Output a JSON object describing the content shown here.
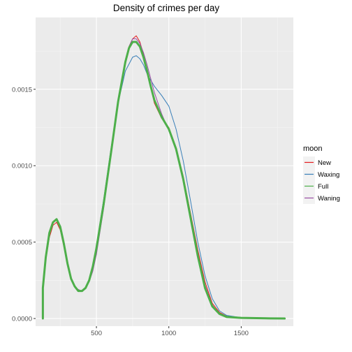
{
  "chart_data": {
    "type": "line",
    "title": "Density of crimes per day",
    "xlabel": "",
    "ylabel": "",
    "xlim": [
      80,
      1860
    ],
    "ylim": [
      -5e-05,
      0.00197
    ],
    "x_ticks": [
      500,
      1000,
      1500
    ],
    "x_tick_labels": [
      "500",
      "1000",
      "1500"
    ],
    "y_ticks": [
      0,
      0.0005,
      0.001,
      0.0015
    ],
    "y_tick_labels": [
      "0.0000",
      "0.0005",
      "0.0010",
      "0.0015"
    ],
    "grid": true,
    "background": "#ebebeb",
    "legend": {
      "title": "moon",
      "position": "right",
      "entries": [
        "New",
        "Waxing",
        "Full",
        "Waning"
      ]
    },
    "series": [
      {
        "name": "New",
        "color": "#e41a1c",
        "width": 1,
        "x": [
          130,
          130,
          150,
          175,
          200,
          225,
          250,
          275,
          300,
          325,
          350,
          375,
          400,
          425,
          450,
          475,
          500,
          550,
          600,
          650,
          700,
          725,
          750,
          775,
          800,
          825,
          850,
          875,
          900,
          950,
          1000,
          1050,
          1100,
          1150,
          1200,
          1250,
          1300,
          1350,
          1400,
          1500,
          1700,
          1800
        ],
        "y": [
          0,
          0.0002,
          0.00038,
          0.00053,
          0.00061,
          0.00063,
          0.00058,
          0.00047,
          0.00035,
          0.00026,
          0.00021,
          0.00018,
          0.00018,
          0.0002,
          0.00025,
          0.00034,
          0.00047,
          0.00076,
          0.00109,
          0.00142,
          0.00168,
          0.00178,
          0.00183,
          0.00185,
          0.00181,
          0.00173,
          0.00162,
          0.00151,
          0.00141,
          0.00131,
          0.00125,
          0.00112,
          0.00093,
          0.00069,
          0.00045,
          0.00024,
          0.0001,
          4e-05,
          1.5e-05,
          5e-06,
          2e-06,
          1e-06
        ]
      },
      {
        "name": "Waxing",
        "color": "#377eb8",
        "width": 1,
        "x": [
          130,
          130,
          150,
          175,
          200,
          225,
          250,
          275,
          300,
          325,
          350,
          375,
          400,
          425,
          450,
          475,
          500,
          550,
          600,
          650,
          700,
          750,
          775,
          800,
          825,
          850,
          875,
          900,
          925,
          950,
          1000,
          1050,
          1100,
          1150,
          1200,
          1250,
          1300,
          1350,
          1400,
          1500,
          1700,
          1800
        ],
        "y": [
          0,
          0.0002,
          0.0004,
          0.00056,
          0.00063,
          0.00065,
          0.0006,
          0.00049,
          0.00036,
          0.00026,
          0.00021,
          0.00018,
          0.00018,
          0.0002,
          0.00026,
          0.00035,
          0.00048,
          0.00078,
          0.00111,
          0.00141,
          0.00162,
          0.00171,
          0.00172,
          0.0017,
          0.00166,
          0.0016,
          0.00156,
          0.00152,
          0.00149,
          0.00146,
          0.00139,
          0.00124,
          0.00103,
          0.00077,
          0.0005,
          0.00028,
          0.00013,
          5e-05,
          2e-05,
          6e-06,
          2e-06,
          1e-06
        ]
      },
      {
        "name": "Waning",
        "color": "#984ea3",
        "width": 1,
        "x": [
          130,
          130,
          150,
          175,
          200,
          225,
          250,
          275,
          300,
          325,
          350,
          375,
          400,
          425,
          450,
          475,
          500,
          550,
          600,
          650,
          700,
          725,
          750,
          775,
          800,
          825,
          850,
          875,
          900,
          950,
          1000,
          1050,
          1100,
          1150,
          1200,
          1250,
          1300,
          1350,
          1400,
          1500,
          1700,
          1800
        ],
        "y": [
          0,
          0.0002,
          0.0004,
          0.00056,
          0.00063,
          0.00065,
          0.0006,
          0.00049,
          0.00036,
          0.00027,
          0.00021,
          0.00019,
          0.00018,
          0.0002,
          0.00024,
          0.00031,
          0.00042,
          0.00072,
          0.00107,
          0.00142,
          0.00168,
          0.00178,
          0.00183,
          0.00183,
          0.0018,
          0.00174,
          0.00166,
          0.00157,
          0.00148,
          0.00134,
          0.00123,
          0.0011,
          0.00091,
          0.00067,
          0.00043,
          0.00022,
          9e-05,
          3e-05,
          1e-05,
          3e-06,
          1e-06,
          0
        ]
      },
      {
        "name": "Full",
        "color": "#4daf4a",
        "width": 3,
        "x": [
          130,
          130,
          150,
          175,
          200,
          225,
          250,
          275,
          300,
          325,
          350,
          375,
          400,
          425,
          450,
          475,
          500,
          550,
          600,
          650,
          700,
          725,
          750,
          775,
          800,
          825,
          850,
          875,
          900,
          950,
          1000,
          1050,
          1100,
          1150,
          1200,
          1250,
          1300,
          1350,
          1400,
          1500,
          1700,
          1800
        ],
        "y": [
          0,
          0.0002,
          0.0004,
          0.00056,
          0.00063,
          0.00065,
          0.0006,
          0.00049,
          0.00036,
          0.00026,
          0.00021,
          0.00018,
          0.00018,
          0.0002,
          0.00025,
          0.00034,
          0.00046,
          0.00075,
          0.00108,
          0.00142,
          0.00168,
          0.00177,
          0.00181,
          0.00181,
          0.00178,
          0.00171,
          0.00162,
          0.00152,
          0.00143,
          0.00132,
          0.00124,
          0.00111,
          0.00091,
          0.00066,
          0.00041,
          0.0002,
          8e-05,
          3e-05,
          1e-05,
          4e-06,
          1e-06,
          0
        ]
      }
    ]
  }
}
